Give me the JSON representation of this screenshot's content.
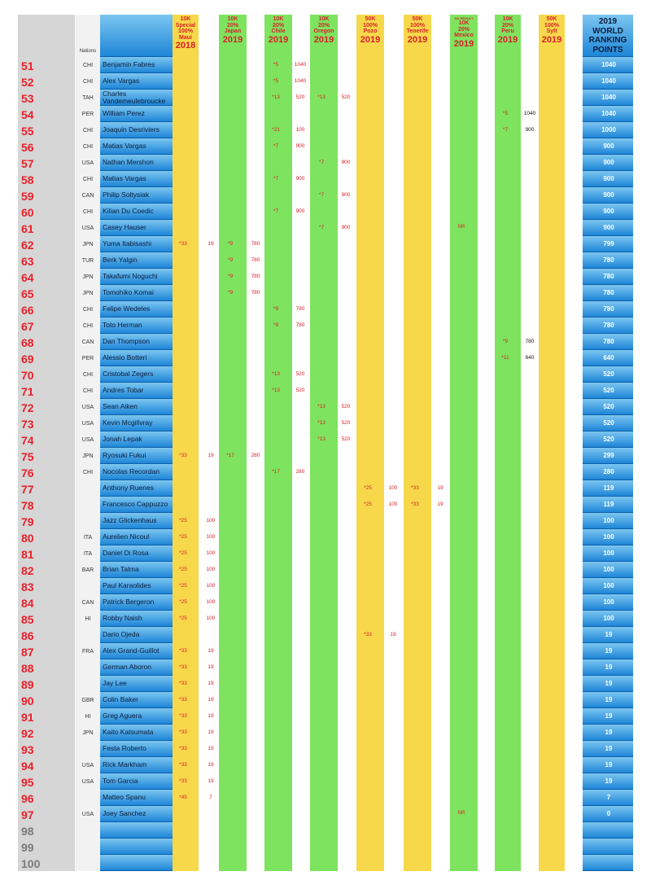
{
  "header": {
    "nations_label": "Nations",
    "events": [
      {
        "type": "10K",
        "scale": "Special 100%",
        "name": "Maui",
        "year": "2018",
        "note": ""
      },
      {
        "type": "10K",
        "scale": "20%",
        "name": "Japan",
        "year": "2019",
        "note": ""
      },
      {
        "type": "10K",
        "scale": "20%",
        "name": "Chile",
        "year": "2019",
        "note": ""
      },
      {
        "type": "10K",
        "scale": "20%",
        "name": "Oregon",
        "year": "2019",
        "note": ""
      },
      {
        "type": "50K",
        "scale": "100%",
        "name": "Pozo",
        "year": "2019",
        "note": ""
      },
      {
        "type": "50K",
        "scale": "100%",
        "name": "Tenerife",
        "year": "2019",
        "note": ""
      },
      {
        "type": "10K",
        "scale": "20%",
        "name": "Mexico",
        "year": "2019",
        "note": "NO RESULT"
      },
      {
        "type": "10K",
        "scale": "20%",
        "name": "Peru",
        "year": "2019",
        "note": ""
      },
      {
        "type": "50K",
        "scale": "100%",
        "name": "Sylt",
        "year": "2019",
        "note": ""
      }
    ],
    "ranking_title": [
      "2019",
      "WORLD",
      "RANKING",
      "POINTS"
    ]
  },
  "rows": [
    {
      "rank": "51",
      "nation": "CHI",
      "name": "Benjamin Fabres",
      "results": [
        {
          "col": 2,
          "pos": "*5",
          "pts": "1040"
        }
      ],
      "total": "1040"
    },
    {
      "rank": "52",
      "nation": "CHI",
      "name": "Alex Vargas",
      "results": [
        {
          "col": 2,
          "pos": "*5",
          "pts": "1040"
        }
      ],
      "total": "1040"
    },
    {
      "rank": "53",
      "nation": "TAH",
      "name": "Charles Vandemeulebroucke",
      "results": [
        {
          "col": 2,
          "pos": "*13",
          "pts": "520"
        },
        {
          "col": 3,
          "pos": "*13",
          "pts": "520"
        }
      ],
      "total": "1040"
    },
    {
      "rank": "54",
      "nation": "PER",
      "name": "William Perez",
      "results": [
        {
          "col": 7,
          "pos": "*5",
          "pts": "1040"
        }
      ],
      "total": "1040"
    },
    {
      "rank": "55",
      "nation": "CHI",
      "name": "Joaquin Desriviers",
      "results": [
        {
          "col": 2,
          "pos": "*21",
          "pts": "100"
        },
        {
          "col": 7,
          "pos": "*7",
          "pts": "900"
        }
      ],
      "total": "1000"
    },
    {
      "rank": "56",
      "nation": "CHI",
      "name": "Matias Vargas",
      "results": [
        {
          "col": 2,
          "pos": "*7",
          "pts": "900"
        }
      ],
      "total": "900"
    },
    {
      "rank": "57",
      "nation": "USA",
      "name": "Nathan Mershon",
      "results": [
        {
          "col": 3,
          "pos": "*7",
          "pts": "900"
        }
      ],
      "total": "900"
    },
    {
      "rank": "58",
      "nation": "CHI",
      "name": "Matias Vargas",
      "results": [
        {
          "col": 2,
          "pos": "*7",
          "pts": "900"
        }
      ],
      "total": "900"
    },
    {
      "rank": "59",
      "nation": "CAN",
      "name": "Philip Soltysiak",
      "results": [
        {
          "col": 3,
          "pos": "*7",
          "pts": "900"
        }
      ],
      "total": "900"
    },
    {
      "rank": "60",
      "nation": "CHI",
      "name": "Kilian Du Coedic",
      "results": [
        {
          "col": 2,
          "pos": "*7",
          "pts": "900"
        }
      ],
      "total": "900"
    },
    {
      "rank": "61",
      "nation": "USA",
      "name": "Casey Hauser",
      "results": [
        {
          "col": 3,
          "pos": "*7",
          "pts": "900"
        },
        {
          "col": 6,
          "pos": "NR",
          "pts": ""
        }
      ],
      "total": "900"
    },
    {
      "rank": "62",
      "nation": "JPN",
      "name": "Yuma Itabisashi",
      "results": [
        {
          "col": 0,
          "pos": "*33",
          "pts": "19"
        },
        {
          "col": 1,
          "pos": "*9",
          "pts": "780"
        }
      ],
      "total": "799"
    },
    {
      "rank": "63",
      "nation": "TUR",
      "name": "Berk Yalgin",
      "results": [
        {
          "col": 1,
          "pos": "*9",
          "pts": "780"
        }
      ],
      "total": "780"
    },
    {
      "rank": "64",
      "nation": "JPN",
      "name": "Takafumi Noguchi",
      "results": [
        {
          "col": 1,
          "pos": "*9",
          "pts": "780"
        }
      ],
      "total": "780"
    },
    {
      "rank": "65",
      "nation": "JPN",
      "name": "Tomohiko Komai",
      "results": [
        {
          "col": 1,
          "pos": "*9",
          "pts": "780"
        }
      ],
      "total": "780"
    },
    {
      "rank": "66",
      "nation": "CHI",
      "name": "Felipe Wedeles",
      "results": [
        {
          "col": 2,
          "pos": "*9",
          "pts": "780"
        }
      ],
      "total": "780"
    },
    {
      "rank": "67",
      "nation": "CHI",
      "name": "Toto Herman",
      "results": [
        {
          "col": 2,
          "pos": "*9",
          "pts": "780"
        }
      ],
      "total": "780"
    },
    {
      "rank": "68",
      "nation": "CAN",
      "name": "Dan Thompson",
      "results": [
        {
          "col": 7,
          "pos": "*9",
          "pts": "780"
        }
      ],
      "total": "780"
    },
    {
      "rank": "69",
      "nation": "PER",
      "name": "Alessio Botteri",
      "results": [
        {
          "col": 7,
          "pos": "*11",
          "pts": "640"
        }
      ],
      "total": "640"
    },
    {
      "rank": "70",
      "nation": "CHI",
      "name": "Cristobal Zegers",
      "results": [
        {
          "col": 2,
          "pos": "*13",
          "pts": "520"
        }
      ],
      "total": "520"
    },
    {
      "rank": "71",
      "nation": "CHI",
      "name": "Andres Tobar",
      "results": [
        {
          "col": 2,
          "pos": "*13",
          "pts": "520"
        }
      ],
      "total": "520"
    },
    {
      "rank": "72",
      "nation": "USA",
      "name": "Sean Aiken",
      "results": [
        {
          "col": 3,
          "pos": "*13",
          "pts": "520"
        }
      ],
      "total": "520"
    },
    {
      "rank": "73",
      "nation": "USA",
      "name": "Kevin Mcgillvray",
      "results": [
        {
          "col": 3,
          "pos": "*13",
          "pts": "520"
        }
      ],
      "total": "520"
    },
    {
      "rank": "74",
      "nation": "USA",
      "name": "Jonah Lepak",
      "results": [
        {
          "col": 3,
          "pos": "*13",
          "pts": "520"
        }
      ],
      "total": "520"
    },
    {
      "rank": "75",
      "nation": "JPN",
      "name": "Ryosuki Fukui",
      "results": [
        {
          "col": 0,
          "pos": "*33",
          "pts": "19"
        },
        {
          "col": 1,
          "pos": "*17",
          "pts": "280"
        }
      ],
      "total": "299"
    },
    {
      "rank": "76",
      "nation": "CHI",
      "name": "Nocolas Recordan",
      "results": [
        {
          "col": 2,
          "pos": "*17",
          "pts": "280"
        }
      ],
      "total": "280"
    },
    {
      "rank": "77",
      "nation": "",
      "name": "Anthony Ruenes",
      "results": [
        {
          "col": 4,
          "pos": "*25",
          "pts": "100"
        },
        {
          "col": 5,
          "pos": "*33",
          "pts": "19"
        }
      ],
      "total": "119"
    },
    {
      "rank": "78",
      "nation": "",
      "name": "Francesco Cappuzzo",
      "results": [
        {
          "col": 4,
          "pos": "*25",
          "pts": "100"
        },
        {
          "col": 5,
          "pos": "*33",
          "pts": "19"
        }
      ],
      "total": "119"
    },
    {
      "rank": "79",
      "nation": "",
      "name": "Jazz Glickenhaus",
      "results": [
        {
          "col": 0,
          "pos": "*25",
          "pts": "100"
        }
      ],
      "total": "100"
    },
    {
      "rank": "80",
      "nation": "ITA",
      "name": "Aurelien Nicoul",
      "results": [
        {
          "col": 0,
          "pos": "*25",
          "pts": "100"
        }
      ],
      "total": "100"
    },
    {
      "rank": "81",
      "nation": "ITA",
      "name": "Daniel Di Rosa",
      "results": [
        {
          "col": 0,
          "pos": "*25",
          "pts": "100"
        }
      ],
      "total": "100"
    },
    {
      "rank": "82",
      "nation": "BAR",
      "name": "Brian Talma",
      "results": [
        {
          "col": 0,
          "pos": "*25",
          "pts": "100"
        }
      ],
      "total": "100"
    },
    {
      "rank": "83",
      "nation": "",
      "name": "Paul Karaolides",
      "results": [
        {
          "col": 0,
          "pos": "*25",
          "pts": "100"
        }
      ],
      "total": "100"
    },
    {
      "rank": "84",
      "nation": "CAN",
      "name": "Patrick Bergeron",
      "results": [
        {
          "col": 0,
          "pos": "*25",
          "pts": "100"
        }
      ],
      "total": "100"
    },
    {
      "rank": "85",
      "nation": "HI",
      "name": "Robby Naish",
      "results": [
        {
          "col": 0,
          "pos": "*25",
          "pts": "100"
        }
      ],
      "total": "100"
    },
    {
      "rank": "86",
      "nation": "",
      "name": "Dario Ojeda",
      "results": [
        {
          "col": 4,
          "pos": "*33",
          "pts": "19"
        }
      ],
      "total": "19"
    },
    {
      "rank": "87",
      "nation": "FRA",
      "name": "Alex Grand-Guillot",
      "results": [
        {
          "col": 0,
          "pos": "*33",
          "pts": "19"
        }
      ],
      "total": "19"
    },
    {
      "rank": "88",
      "nation": "",
      "name": "German Aboron",
      "results": [
        {
          "col": 0,
          "pos": "*33",
          "pts": "19"
        }
      ],
      "total": "19"
    },
    {
      "rank": "89",
      "nation": "",
      "name": "Jay Lee",
      "results": [
        {
          "col": 0,
          "pos": "*33",
          "pts": "19"
        }
      ],
      "total": "19"
    },
    {
      "rank": "90",
      "nation": "GBR",
      "name": "Colin Baker",
      "results": [
        {
          "col": 0,
          "pos": "*33",
          "pts": "19"
        }
      ],
      "total": "19"
    },
    {
      "rank": "91",
      "nation": "HI",
      "name": "Greg Aguera",
      "results": [
        {
          "col": 0,
          "pos": "*33",
          "pts": "19"
        }
      ],
      "total": "19"
    },
    {
      "rank": "92",
      "nation": "JPN",
      "name": "Kaito Katsumata",
      "results": [
        {
          "col": 0,
          "pos": "*33",
          "pts": "19"
        }
      ],
      "total": "19"
    },
    {
      "rank": "93",
      "nation": "",
      "name": "Festa Roberto",
      "results": [
        {
          "col": 0,
          "pos": "*33",
          "pts": "19"
        }
      ],
      "total": "19"
    },
    {
      "rank": "94",
      "nation": "USA",
      "name": "Rick Markham",
      "results": [
        {
          "col": 0,
          "pos": "*33",
          "pts": "19"
        }
      ],
      "total": "19"
    },
    {
      "rank": "95",
      "nation": "USA",
      "name": "Tom Garcia",
      "results": [
        {
          "col": 0,
          "pos": "*33",
          "pts": "19"
        }
      ],
      "total": "19"
    },
    {
      "rank": "96",
      "nation": "",
      "name": "Matteo Spanu",
      "results": [
        {
          "col": 0,
          "pos": "*45",
          "pts": "7"
        }
      ],
      "total": "7"
    },
    {
      "rank": "97",
      "nation": "USA",
      "name": "Joey Sanchez",
      "results": [
        {
          "col": 6,
          "pos": "NR",
          "pts": ""
        }
      ],
      "total": "0"
    },
    {
      "rank": "98",
      "nation": "",
      "name": "",
      "results": [],
      "total": ""
    },
    {
      "rank": "99",
      "nation": "",
      "name": "",
      "results": [],
      "total": ""
    },
    {
      "rank": "100",
      "nation": "",
      "name": "",
      "results": [],
      "total": ""
    }
  ]
}
